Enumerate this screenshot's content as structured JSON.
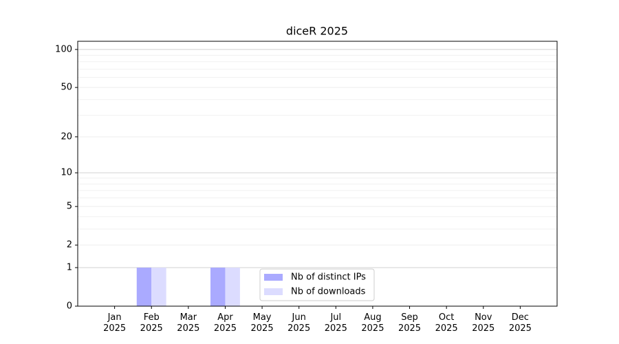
{
  "chart_data": {
    "type": "bar",
    "title": "diceR 2025",
    "categories": [
      "Jan\n2025",
      "Feb\n2025",
      "Mar\n2025",
      "Apr\n2025",
      "May\n2025",
      "Jun\n2025",
      "Jul\n2025",
      "Aug\n2025",
      "Sep\n2025",
      "Oct\n2025",
      "Nov\n2025",
      "Dec\n2025"
    ],
    "series": [
      {
        "name": "Nb of distinct IPs",
        "color": "#aaaaff",
        "values": [
          0,
          1,
          0,
          1,
          0,
          0,
          0,
          0,
          0,
          0,
          0,
          0
        ]
      },
      {
        "name": "Nb of downloads",
        "color": "#dcdcff",
        "values": [
          0,
          1,
          0,
          1,
          0,
          0,
          0,
          0,
          0,
          0,
          0,
          0
        ]
      }
    ],
    "yscale": "symlog",
    "ylim": [
      0,
      116
    ],
    "yticks": [
      0,
      1,
      2,
      5,
      10,
      20,
      50,
      100
    ],
    "yminor": [
      3,
      4,
      6,
      7,
      8,
      9,
      30,
      40,
      60,
      70,
      80,
      90
    ],
    "grid": true,
    "legend": "lower center"
  }
}
